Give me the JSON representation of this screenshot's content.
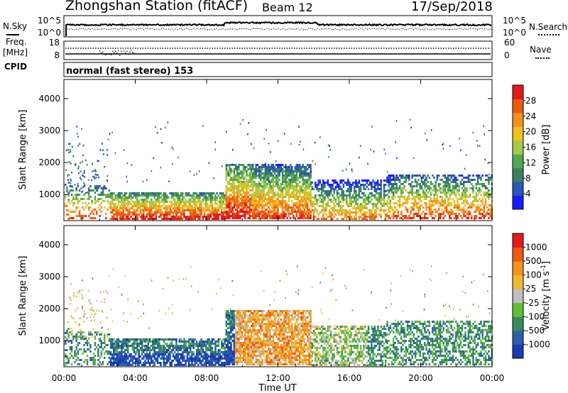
{
  "header": {
    "station": "Zhongshan Station (fitACF)",
    "beam": "Beam 12",
    "date": "17/Sep/2018"
  },
  "top_panels": {
    "nsky_label": "N.Sky",
    "nsky_ticks": [
      "10^5",
      "10^0"
    ],
    "nsearch_label": "N.Search",
    "nsearch_ticks": [
      "10^5",
      "10^0"
    ],
    "freq_label_1": "Freq.",
    "freq_label_2": "[MHz]",
    "freq_ticks": [
      "18",
      "8"
    ],
    "nave_label": "Nave",
    "nave_ticks": [
      "60",
      "0"
    ],
    "cpid_label": "CPID",
    "cpid_text": "normal (fast stereo) 153"
  },
  "colors": {
    "power_scale": [
      "#1a1aff",
      "#2b55b8",
      "#3a8060",
      "#52a852",
      "#a8c84a",
      "#f0c020",
      "#f29020",
      "#ee5a10",
      "#e31a1c"
    ],
    "velocity_scale": [
      "#e31a1c",
      "#ee5a10",
      "#f29020",
      "#f0b830",
      "#c0c0c0",
      "#62c034",
      "#3a8a60",
      "#2b60a8",
      "#1a3ab0"
    ],
    "noise_color": "#000000"
  },
  "chart_data": [
    {
      "type": "heatmap",
      "title": "",
      "xlabel": "",
      "ylabel": "Slant Range [km]",
      "xlim": [
        0,
        24
      ],
      "ylim": [
        180,
        4600
      ],
      "x_ticks": [
        0,
        4,
        8,
        12,
        16,
        20,
        24
      ],
      "y_ticks": [
        1000,
        2000,
        3000,
        4000
      ],
      "y_tick_labels": [
        "1000",
        "2000",
        "3000",
        "4000"
      ],
      "colorbar": {
        "label": "Power [dB]",
        "range": [
          0,
          32
        ],
        "tick_values": [
          4,
          8,
          12,
          16,
          20,
          24,
          28
        ],
        "tick_labels": [
          "4",
          "8",
          "12",
          "16",
          "20",
          "24",
          "28"
        ]
      }
    },
    {
      "type": "heatmap",
      "title": "",
      "xlabel": "Time UT",
      "ylabel": "Slant Range [km]",
      "xlim": [
        0,
        24
      ],
      "ylim": [
        180,
        4600
      ],
      "x_ticks": [
        0,
        4,
        8,
        12,
        16,
        20,
        24
      ],
      "x_tick_labels": [
        "00:00",
        "04:00",
        "08:00",
        "12:00",
        "16:00",
        "20:00",
        "00:00"
      ],
      "y_ticks": [
        1000,
        2000,
        3000,
        4000
      ],
      "y_tick_labels": [
        "1000",
        "2000",
        "3000",
        "4000"
      ],
      "colorbar": {
        "label": "Velocity [m s-1]",
        "tick_labels": [
          "1000",
          "500",
          "100",
          "25",
          "-25",
          "-100",
          "-500",
          "-1000"
        ]
      }
    }
  ]
}
